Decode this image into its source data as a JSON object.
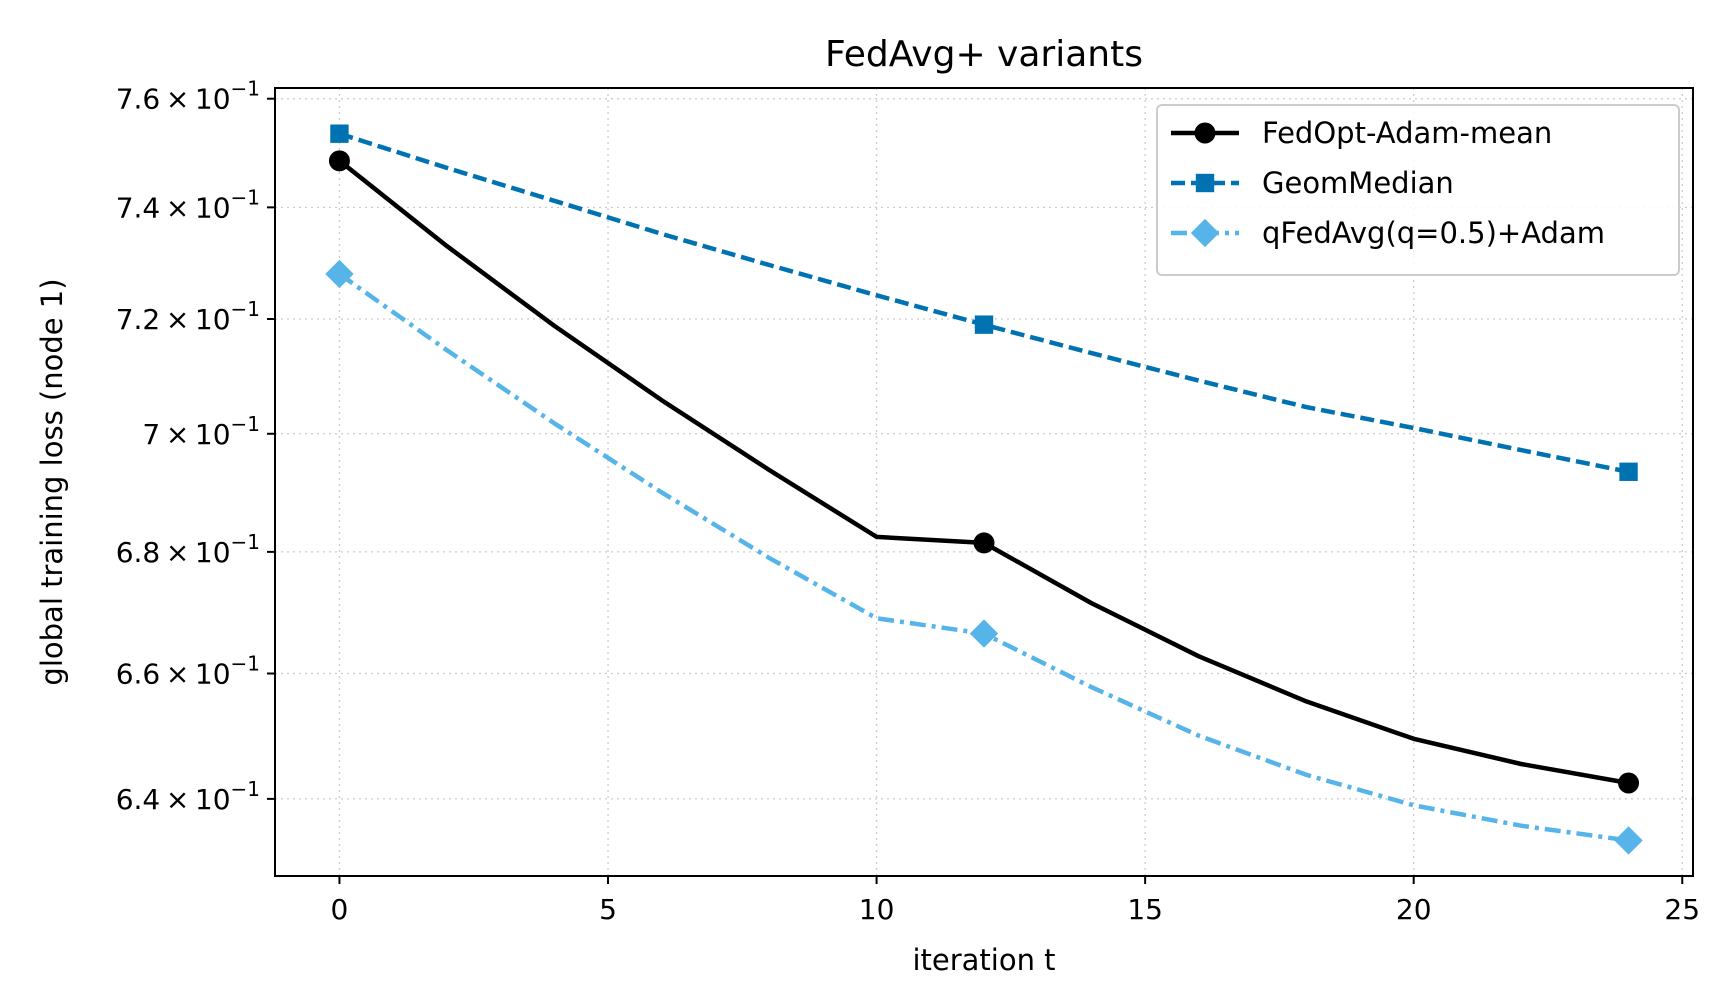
{
  "chart_data": {
    "type": "line",
    "title": "FedAvg+ variants",
    "xlabel": "iteration t",
    "ylabel": "global training loss (node 1)",
    "xlim": [
      -1.2,
      25.2
    ],
    "ylim": [
      0.628,
      0.762
    ],
    "yscale": "log",
    "grid": true,
    "legend_position": "top-right",
    "x_ticks": [
      0,
      5,
      10,
      15,
      20,
      25
    ],
    "x_tick_labels": [
      "0",
      "5",
      "10",
      "15",
      "20",
      "25"
    ],
    "y_ticks": [
      0.64,
      0.66,
      0.68,
      0.7,
      0.72,
      0.74,
      0.76
    ],
    "y_tick_labels": [
      {
        "mantissa": "6.4",
        "base": "10",
        "exp": "−1"
      },
      {
        "mantissa": "6.6",
        "base": "10",
        "exp": "−1"
      },
      {
        "mantissa": "6.8",
        "base": "10",
        "exp": "−1"
      },
      {
        "mantissa": "7",
        "base": "10",
        "exp": "−1"
      },
      {
        "mantissa": "7.2",
        "base": "10",
        "exp": "−1"
      },
      {
        "mantissa": "7.4",
        "base": "10",
        "exp": "−1"
      },
      {
        "mantissa": "7.6",
        "base": "10",
        "exp": "−1"
      }
    ],
    "series": [
      {
        "name": "FedOpt-Adam-mean",
        "color": "#000000",
        "line_style": "solid",
        "marker": "circle",
        "marker_x": [
          0,
          12,
          24
        ],
        "marker_y": [
          0.7485,
          0.6815,
          0.6425
        ],
        "x": [
          0,
          2,
          4,
          6,
          8,
          10,
          12,
          14,
          16,
          18,
          20,
          22,
          24
        ],
        "y": [
          0.7485,
          0.733,
          0.7188,
          0.7058,
          0.6938,
          0.6825,
          0.6815,
          0.6715,
          0.6628,
          0.6555,
          0.6495,
          0.6455,
          0.6425
        ]
      },
      {
        "name": "GeomMedian",
        "color": "#0072b2",
        "line_style": "dashed",
        "marker": "square",
        "marker_x": [
          0,
          12,
          24
        ],
        "marker_y": [
          0.7535,
          0.719,
          0.6935
        ],
        "x": [
          0,
          2,
          4,
          6,
          8,
          10,
          12,
          14,
          16,
          18,
          20,
          22,
          24
        ],
        "y": [
          0.7535,
          0.7472,
          0.7412,
          0.7352,
          0.7296,
          0.7242,
          0.719,
          0.714,
          0.7092,
          0.7046,
          0.701,
          0.6972,
          0.6935
        ]
      },
      {
        "name": "qFedAvg(q=0.5)+Adam",
        "color": "#56b4e9",
        "line_style": "dashdot",
        "marker": "diamond",
        "marker_x": [
          0,
          12,
          24
        ],
        "marker_y": [
          0.728,
          0.6665,
          0.6335
        ],
        "x": [
          0,
          2,
          4,
          6,
          8,
          10,
          12,
          14,
          16,
          18,
          20,
          22,
          24
        ],
        "y": [
          0.728,
          0.7145,
          0.7018,
          0.69,
          0.679,
          0.669,
          0.6665,
          0.6578,
          0.65,
          0.6438,
          0.639,
          0.6358,
          0.6335
        ]
      }
    ]
  }
}
